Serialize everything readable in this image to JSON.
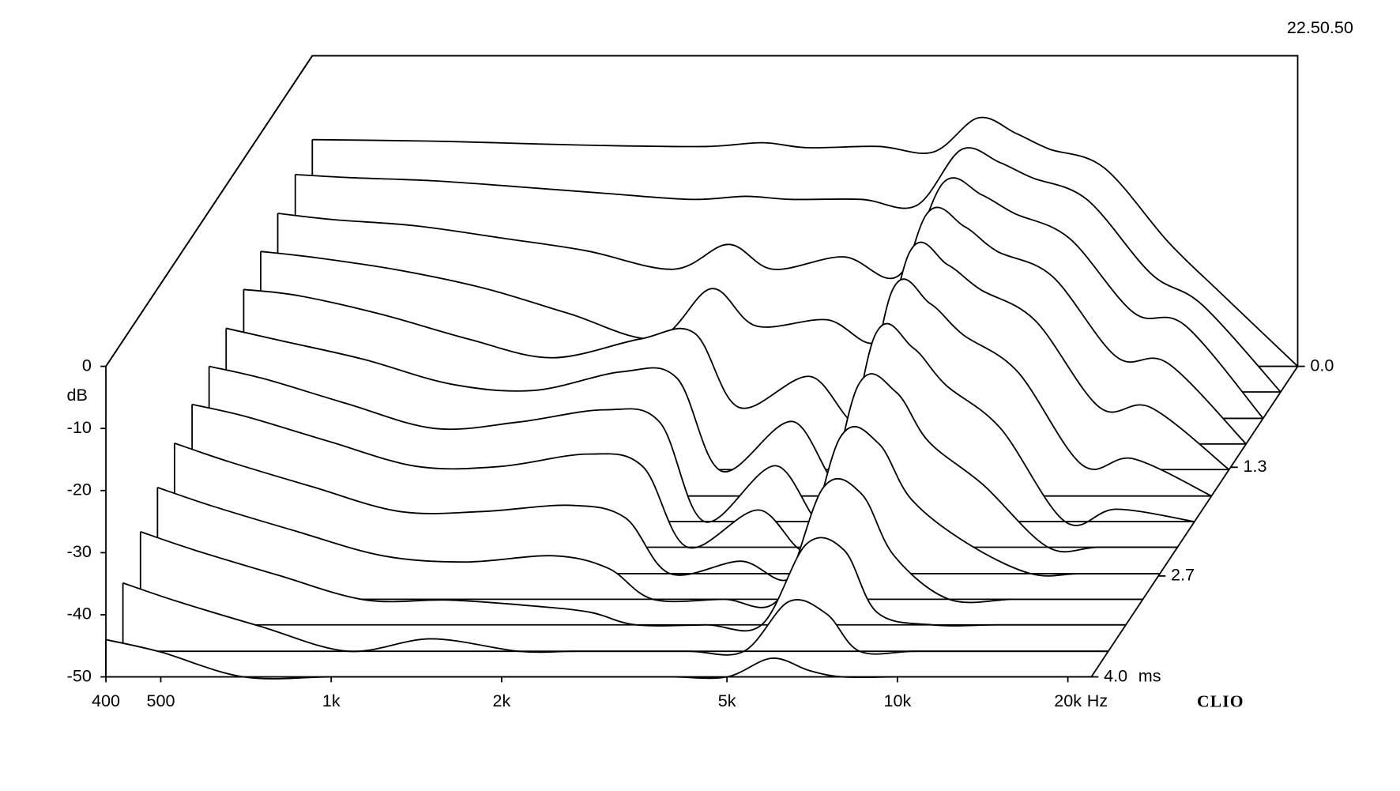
{
  "chart_data": {
    "type": "waterfall",
    "timestamp": "22.50.50",
    "brand": "CLIO",
    "y_label": "dB",
    "x_unit": "Hz",
    "z_unit": "ms",
    "line_color": "#000000",
    "log_x": true,
    "xlim": [
      400,
      22000
    ],
    "xticks": [
      400,
      500,
      {
        "value": 1000,
        "label": "1k"
      },
      {
        "value": 2000,
        "label": "2k"
      },
      {
        "value": 5000,
        "label": "5k"
      },
      {
        "value": 10000,
        "label": "10k"
      },
      {
        "value": 20000,
        "label": "20k"
      }
    ],
    "ylim": [
      -50,
      0
    ],
    "yticks": [
      0,
      -10,
      -20,
      -30,
      -40,
      -50
    ],
    "zlim": [
      0,
      4
    ],
    "zticks": [
      {
        "value": 0,
        "label": "0.0"
      },
      1.3,
      2.7,
      {
        "value": 4,
        "label": "4.0"
      }
    ],
    "x": [
      400,
      500,
      700,
      1000,
      1400,
      2000,
      2500,
      3000,
      4000,
      5000,
      6000,
      7000,
      8000,
      10000,
      13000,
      16000,
      22000
    ],
    "z": [
      0,
      0.33,
      0.67,
      1,
      1.33,
      1.67,
      2,
      2.33,
      2.67,
      3,
      3.33,
      3.67,
      4
    ],
    "series": [
      {
        "values": [
          -13.5,
          -13.6,
          -13.8,
          -14.2,
          -14.5,
          -14.6,
          -14.0,
          -14.8,
          -14.6,
          -15.5,
          -10,
          -12.5,
          -15,
          -18,
          -30,
          -38,
          -50
        ]
      },
      {
        "values": [
          -15,
          -15.5,
          -16,
          -17,
          -18,
          -19,
          -18.5,
          -19,
          -19,
          -20,
          -11,
          -13,
          -15.5,
          -19,
          -31,
          -36,
          -50
        ]
      },
      {
        "values": [
          -17,
          -18,
          -19,
          -21,
          -23,
          -26,
          -22,
          -26,
          -24,
          -27,
          -12,
          -14,
          -17,
          -21,
          -33,
          -35,
          -50
        ]
      },
      {
        "values": [
          -19,
          -20,
          -22,
          -25,
          -29,
          -33,
          -25,
          -31,
          -30,
          -33,
          -13,
          -15,
          -19,
          -23,
          -36,
          -37,
          -50
        ]
      },
      {
        "values": [
          -21,
          -22,
          -25,
          -29,
          -32,
          -29,
          -28,
          -40,
          -35,
          -42,
          -15,
          -17,
          -21,
          -26,
          -40,
          -40,
          -50
        ]
      },
      {
        "values": [
          -23,
          -25,
          -28,
          -32,
          -33,
          -30,
          -31,
          -46,
          -38,
          -48,
          -17,
          -19,
          -24,
          -30,
          -45,
          -44,
          -50
        ]
      },
      {
        "values": [
          -25,
          -27,
          -31,
          -35,
          -34,
          -32,
          -34,
          -50,
          -41,
          -50,
          -20,
          -22,
          -28,
          -35,
          -50,
          -48,
          -50
        ]
      },
      {
        "values": [
          -27,
          -29,
          -33,
          -37,
          -37,
          -35,
          -37,
          -50,
          -44,
          -50,
          -24,
          -25,
          -33,
          -40,
          -50,
          -50,
          -50
        ]
      },
      {
        "values": [
          -29,
          -32,
          -36,
          -40,
          -40,
          -39,
          -41,
          -50,
          -48,
          -50,
          -28,
          -29,
          -38,
          -45,
          -50,
          -50,
          -50
        ]
      },
      {
        "values": [
          -32,
          -35,
          -39,
          -43,
          -44,
          -43,
          -45,
          -50,
          -50,
          -50,
          -32,
          -33,
          -43,
          -50,
          -50,
          -50,
          -50
        ]
      },
      {
        "values": [
          -35,
          -38,
          -42,
          -46,
          -46,
          -47,
          -48,
          -50,
          -50,
          -50,
          -37,
          -38,
          -48,
          -50,
          -50,
          -50,
          -50
        ]
      },
      {
        "values": [
          -39,
          -42,
          -46,
          -50,
          -48,
          -50,
          -50,
          -50,
          -50,
          -50,
          -42,
          -44,
          -50,
          -50,
          -50,
          -50,
          -50
        ]
      },
      {
        "values": [
          -44,
          -46,
          -50,
          -50,
          -50,
          -50,
          -50,
          -50,
          -50,
          -50,
          -47,
          -49,
          -50,
          -50,
          -50,
          -50,
          -50
        ]
      }
    ]
  }
}
